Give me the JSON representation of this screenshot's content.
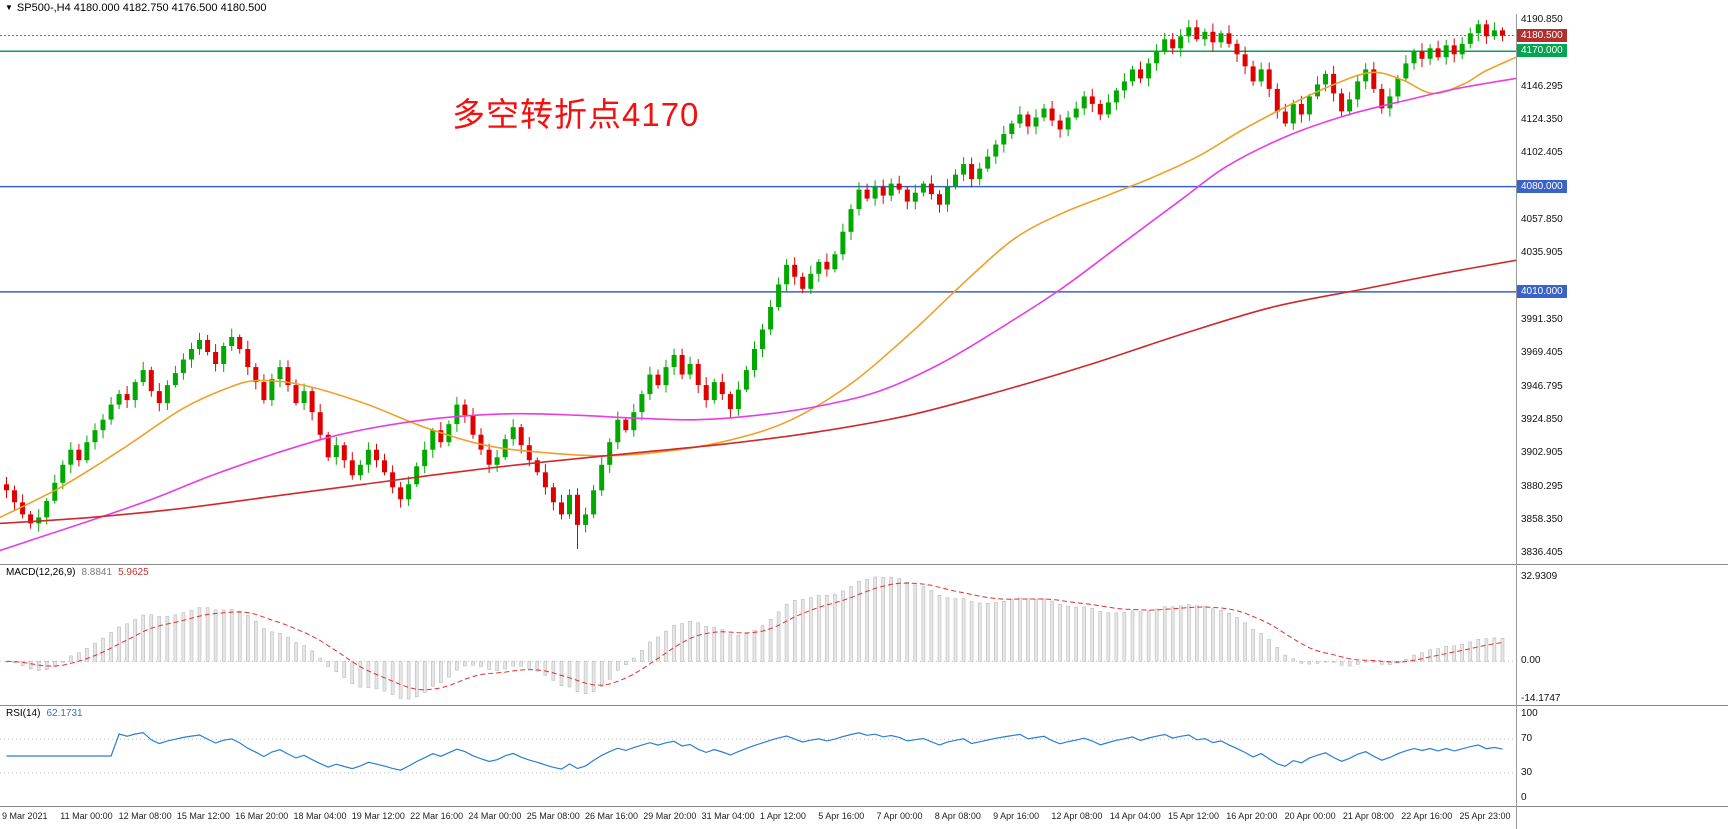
{
  "header": {
    "collapse_icon": "▼",
    "symbol_info": "SP500-,H4  4180.000 4182.750 4176.500 4180.500"
  },
  "annotation": {
    "text": "多空转折点4170",
    "color": "#f21111"
  },
  "price_axis": {
    "labels": [
      {
        "price": 4190.85,
        "text": "4190.850"
      },
      {
        "price": 4146.295,
        "text": "4146.295"
      },
      {
        "price": 4124.35,
        "text": "4124.350"
      },
      {
        "price": 4102.405,
        "text": "4102.405"
      },
      {
        "price": 4057.85,
        "text": "4057.850"
      },
      {
        "price": 4035.905,
        "text": "4035.905"
      },
      {
        "price": 3991.35,
        "text": "3991.350"
      },
      {
        "price": 3969.405,
        "text": "3969.405"
      },
      {
        "price": 3946.795,
        "text": "3946.795"
      },
      {
        "price": 3924.85,
        "text": "3924.850"
      },
      {
        "price": 3902.905,
        "text": "3902.905"
      },
      {
        "price": 3880.295,
        "text": "3880.295"
      },
      {
        "price": 3858.35,
        "text": "3858.350"
      },
      {
        "price": 3836.405,
        "text": "3836.405"
      }
    ]
  },
  "levels": [
    {
      "price": 4180.5,
      "text": "4180.500",
      "bg": "#b22f2f",
      "line_color": "#c35555",
      "dash": "2 2",
      "width": 1
    },
    {
      "price": 4170.0,
      "text": "4170.000",
      "bg": "#00a651",
      "line_color": "#00a651",
      "dash": "",
      "width": 1.5
    },
    {
      "price": 4080.0,
      "text": "4080.000",
      "bg": "#3a62c8",
      "line_color": "#3a62c8",
      "dash": "",
      "width": 1.5
    },
    {
      "price": 4010.0,
      "text": "4010.000",
      "bg": "#3a62c8",
      "line_color": "#3a62c8",
      "dash": "",
      "width": 1.5
    }
  ],
  "chart_data": {
    "type": "candlestick",
    "symbol": "SP500-",
    "timeframe": "H4",
    "title": "SP500- H4 candlestick chart with MA lines, MACD and RSI",
    "ohlc_display": {
      "open": "4180.000",
      "high": "4182.750",
      "low": "4176.500",
      "close": "4180.500"
    },
    "y_range": [
      3829.0,
      4193.5
    ],
    "colors": {
      "bull": "#00a800",
      "bear": "#df0000"
    },
    "candles": {
      "first_open": 3882,
      "closes": [
        3878,
        3870,
        3862,
        3856,
        3860,
        3871,
        3883,
        3895,
        3905,
        3898,
        3910,
        3918,
        3925,
        3935,
        3942,
        3938,
        3950,
        3958,
        3944,
        3936,
        3948,
        3956,
        3965,
        3972,
        3978,
        3970,
        3962,
        3974,
        3980,
        3972,
        3960,
        3950,
        3938,
        3952,
        3960,
        3948,
        3936,
        3944,
        3930,
        3915,
        3900,
        3908,
        3898,
        3888,
        3895,
        3905,
        3898,
        3890,
        3880,
        3872,
        3882,
        3894,
        3905,
        3918,
        3910,
        3922,
        3935,
        3928,
        3915,
        3905,
        3895,
        3900,
        3912,
        3920,
        3908,
        3898,
        3890,
        3880,
        3870,
        3862,
        3875,
        3855,
        3862,
        3878,
        3895,
        3910,
        3925,
        3918,
        3930,
        3942,
        3955,
        3948,
        3960,
        3968,
        3955,
        3962,
        3948,
        3938,
        3950,
        3942,
        3932,
        3945,
        3958,
        3972,
        3985,
        4000,
        4015,
        4028,
        4020,
        4012,
        4022,
        4030,
        4025,
        4035,
        4050,
        4065,
        4078,
        4072,
        4080,
        4074,
        4082,
        4078,
        4070,
        4076,
        4082,
        4075,
        4068,
        4080,
        4088,
        4095,
        4085,
        4092,
        4100,
        4108,
        4115,
        4122,
        4128,
        4120,
        4126,
        4132,
        4124,
        4118,
        4126,
        4132,
        4140,
        4135,
        4128,
        4136,
        4144,
        4150,
        4158,
        4152,
        4162,
        4170,
        4178,
        4172,
        4180,
        4186,
        4178,
        4183,
        4176,
        4182,
        4175,
        4168,
        4160,
        4150,
        4158,
        4145,
        4130,
        4122,
        4135,
        4128,
        4140,
        4148,
        4155,
        4142,
        4130,
        4138,
        4150,
        4158,
        4145,
        4132,
        4140,
        4152,
        4162,
        4170,
        4165,
        4172,
        4166,
        4174,
        4168,
        4175,
        4182,
        4188,
        4180,
        4184,
        4180.5
      ],
      "low_overrides": {
        "71": 3839
      },
      "high_overrides": {
        "147": 4190.8
      }
    },
    "moving_averages": [
      {
        "name": "fast-ma",
        "color": "#eda128",
        "points": [
          [
            0,
            3860
          ],
          [
            0.04,
            3880
          ],
          [
            0.08,
            3905
          ],
          [
            0.12,
            3932
          ],
          [
            0.15,
            3946
          ],
          [
            0.17,
            3951
          ],
          [
            0.2,
            3948
          ],
          [
            0.24,
            3936
          ],
          [
            0.28,
            3920
          ],
          [
            0.32,
            3908
          ],
          [
            0.36,
            3903
          ],
          [
            0.4,
            3901
          ],
          [
            0.44,
            3904
          ],
          [
            0.48,
            3911
          ],
          [
            0.52,
            3924
          ],
          [
            0.56,
            3948
          ],
          [
            0.6,
            3982
          ],
          [
            0.64,
            4020
          ],
          [
            0.67,
            4046
          ],
          [
            0.7,
            4062
          ],
          [
            0.73,
            4074
          ],
          [
            0.76,
            4086
          ],
          [
            0.79,
            4100
          ],
          [
            0.82,
            4118
          ],
          [
            0.85,
            4134
          ],
          [
            0.88,
            4148
          ],
          [
            0.905,
            4156
          ],
          [
            0.925,
            4151
          ],
          [
            0.945,
            4142
          ],
          [
            0.965,
            4148
          ],
          [
            0.98,
            4157
          ],
          [
            1,
            4166
          ]
        ]
      },
      {
        "name": "mid-ma",
        "color": "#e83ce8",
        "points": [
          [
            0,
            3838
          ],
          [
            0.03,
            3848
          ],
          [
            0.06,
            3858
          ],
          [
            0.1,
            3872
          ],
          [
            0.14,
            3888
          ],
          [
            0.18,
            3902
          ],
          [
            0.22,
            3914
          ],
          [
            0.26,
            3922
          ],
          [
            0.3,
            3927
          ],
          [
            0.34,
            3929
          ],
          [
            0.38,
            3928
          ],
          [
            0.42,
            3926
          ],
          [
            0.46,
            3925
          ],
          [
            0.5,
            3928
          ],
          [
            0.54,
            3934
          ],
          [
            0.58,
            3944
          ],
          [
            0.62,
            3962
          ],
          [
            0.66,
            3986
          ],
          [
            0.7,
            4012
          ],
          [
            0.74,
            4042
          ],
          [
            0.78,
            4072
          ],
          [
            0.81,
            4094
          ],
          [
            0.85,
            4114
          ],
          [
            0.89,
            4128
          ],
          [
            0.93,
            4138
          ],
          [
            0.96,
            4145
          ],
          [
            1,
            4152
          ]
        ]
      },
      {
        "name": "slow-ma",
        "color": "#d02929",
        "points": [
          [
            0,
            3856
          ],
          [
            0.06,
            3860
          ],
          [
            0.12,
            3866
          ],
          [
            0.18,
            3874
          ],
          [
            0.24,
            3882
          ],
          [
            0.3,
            3890
          ],
          [
            0.36,
            3897
          ],
          [
            0.42,
            3903
          ],
          [
            0.48,
            3909
          ],
          [
            0.54,
            3917
          ],
          [
            0.6,
            3928
          ],
          [
            0.66,
            3944
          ],
          [
            0.72,
            3962
          ],
          [
            0.78,
            3982
          ],
          [
            0.84,
            4000
          ],
          [
            0.9,
            4012
          ],
          [
            0.95,
            4022
          ],
          [
            1,
            4031
          ]
        ]
      }
    ],
    "indicators": {
      "macd": {
        "label": "MACD(12,26,9)",
        "value_main": "8.8841",
        "value_signal": "5.9625",
        "params": [
          12,
          26,
          9
        ],
        "axis_labels": [
          "32.9309",
          "0.00",
          "-14.1747"
        ],
        "histogram_color": "#e6e6e6",
        "histogram_stroke": "#b0b0b0",
        "signal_color": "#e03030"
      },
      "rsi": {
        "label": "RSI(14)",
        "value": "62.1731",
        "period": 14,
        "axis_labels": [
          "100",
          "70",
          "30",
          "0"
        ],
        "levels": [
          70,
          30
        ],
        "line_color": "#2a7fd4"
      }
    },
    "time_axis": [
      "9 Mar 2021",
      "11 Mar 00:00",
      "12 Mar 08:00",
      "15 Mar 12:00",
      "16 Mar 20:00",
      "18 Mar 04:00",
      "19 Mar 12:00",
      "22 Mar 16:00",
      "24 Mar 00:00",
      "25 Mar 08:00",
      "26 Mar 16:00",
      "29 Mar 20:00",
      "31 Mar 04:00",
      "1 Apr 12:00",
      "5 Apr 16:00",
      "7 Apr 00:00",
      "8 Apr 08:00",
      "9 Apr 16:00",
      "12 Apr 08:00",
      "14 Apr 04:00",
      "15 Apr 12:00",
      "16 Apr 20:00",
      "20 Apr 00:00",
      "21 Apr 08:00",
      "22 Apr 16:00",
      "25 Apr 23:00"
    ]
  }
}
